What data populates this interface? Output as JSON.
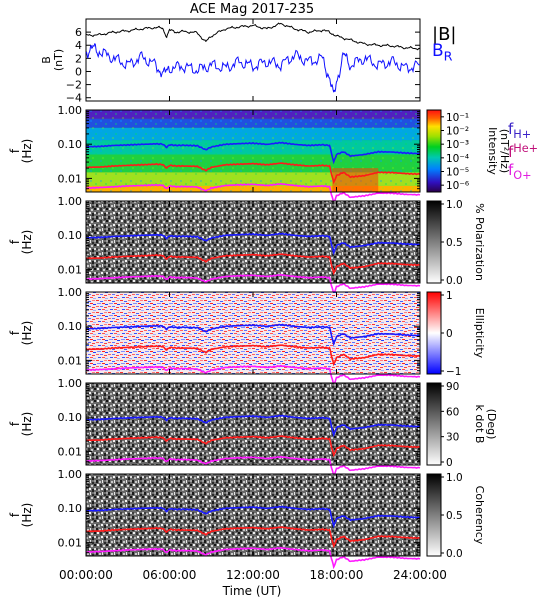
{
  "chart_data": {
    "type": "multi-panel spectrogram",
    "title": "ACE Mag 2017-235",
    "xlabel": "Time (UT)",
    "x_ticks": [
      "00:00:00",
      "06:00:00",
      "12:00:00",
      "18:00:00",
      "24:00:00"
    ],
    "xlim_hours": [
      0,
      24
    ],
    "legend_top": [
      "|B|",
      "B_R"
    ],
    "legend_freq": [
      "f_H+",
      "f_He+",
      "f_O+"
    ],
    "colors": {
      "B_total": "#000000",
      "B_R": "#1010ff",
      "f_H": "#1a1aff",
      "f_He": "#ff1a1a",
      "f_O": "#ff1aff",
      "legend_H": "#3b24c8",
      "legend_He": "#c0107a",
      "legend_O": "#e020e0"
    },
    "panels": [
      {
        "type": "line",
        "ylabel": "B (nT)",
        "yticks": [
          "−4",
          "−2",
          "0",
          "2",
          "4",
          "6"
        ],
        "ylim": [
          -4.5,
          8
        ],
        "series": [
          {
            "name": "|B|",
            "x": [
              0,
              1,
              2,
              3,
              4,
              5,
              5.5,
              5.8,
              6,
              6.5,
              7,
              8,
              8.6,
              9,
              10,
              11,
              12,
              13,
              14,
              15,
              16,
              17,
              17.5,
              18,
              19,
              20,
              21,
              22,
              23,
              24
            ],
            "values": [
              5.5,
              5.6,
              6.0,
              6.2,
              6.5,
              6.7,
              6.6,
              5.3,
              6.3,
              6.0,
              6.1,
              5.9,
              4.5,
              5.4,
              6.5,
              6.8,
              7.0,
              6.5,
              7.3,
              6.5,
              6.0,
              6.3,
              6.0,
              5.4,
              4.8,
              4.2,
              4.0,
              3.9,
              3.6,
              3.5
            ]
          },
          {
            "name": "B_R",
            "x": [
              0,
              0.5,
              1,
              2,
              3,
              4,
              5,
              5.6,
              6,
              7,
              8,
              9,
              10,
              11,
              12,
              13,
              14,
              15,
              16,
              17,
              17.5,
              17.8,
              18,
              18.5,
              19,
              20,
              21,
              22,
              23,
              24
            ],
            "values": [
              3.0,
              3.5,
              3.0,
              2.0,
              1.0,
              2.2,
              1.0,
              -0.5,
              0.5,
              0.8,
              0.2,
              1.0,
              0.5,
              1.5,
              0.8,
              1.5,
              1.0,
              2.5,
              1.5,
              2.0,
              -1.0,
              -4.0,
              -1.5,
              2.5,
              1.0,
              2.0,
              1.0,
              1.5,
              0.5,
              1.0
            ]
          }
        ]
      },
      {
        "type": "heatmap",
        "ylabel": "f (Hz)",
        "colorbar_label": "Intensity (nT²/Hz)",
        "colorbar_ticks": [
          "10⁻¹",
          "10⁻²",
          "10⁻³",
          "10⁻⁴",
          "10⁻⁵",
          "10⁻⁶"
        ],
        "colorbar_log_range": [
          -6.5,
          -0.5
        ]
      },
      {
        "type": "heatmap",
        "ylabel": "f (Hz)",
        "colorbar_label": "% Polarization",
        "colorbar_ticks": [
          "1.0",
          "0.5",
          "0.0"
        ],
        "colorbar_range": [
          0,
          1
        ]
      },
      {
        "type": "heatmap",
        "ylabel": "f (Hz)",
        "colorbar_label": "Ellipticity",
        "colorbar_ticks": [
          "1",
          "0",
          "−1"
        ],
        "colorbar_range": [
          -1,
          1
        ]
      },
      {
        "type": "heatmap",
        "ylabel": "f (Hz)",
        "colorbar_label": "k dot B (Deg)",
        "colorbar_ticks": [
          "90",
          "60",
          "30",
          "0"
        ],
        "colorbar_range": [
          0,
          90
        ]
      },
      {
        "type": "heatmap",
        "ylabel": "f (Hz)",
        "colorbar_label": "Coherency",
        "colorbar_ticks": [
          "1.0",
          "0.5",
          "0.0"
        ],
        "colorbar_range": [
          0,
          1
        ]
      }
    ],
    "freq_axis": {
      "scale": "log",
      "ylim": [
        0.004,
        1.0
      ],
      "ticks": [
        "1.00",
        "0.10",
        "0.01"
      ],
      "tick_values": [
        1.0,
        0.1,
        0.01
      ]
    },
    "gyrofrequency_lines": {
      "x_hours": [
        0,
        1,
        2,
        3,
        4,
        5,
        5.5,
        5.8,
        6,
        6.5,
        7,
        8,
        8.6,
        9,
        10,
        11,
        12,
        13,
        14,
        15,
        16,
        17,
        17.5,
        17.8,
        18,
        18.5,
        19,
        20,
        21,
        22,
        23,
        24
      ],
      "f_H+": [
        0.084,
        0.086,
        0.092,
        0.095,
        0.099,
        0.102,
        0.101,
        0.081,
        0.096,
        0.092,
        0.093,
        0.09,
        0.069,
        0.083,
        0.099,
        0.104,
        0.107,
        0.099,
        0.111,
        0.099,
        0.092,
        0.096,
        0.092,
        0.03,
        0.05,
        0.06,
        0.045,
        0.05,
        0.06,
        0.059,
        0.055,
        0.053
      ],
      "f_He+": [
        0.021,
        0.0215,
        0.023,
        0.024,
        0.025,
        0.026,
        0.0255,
        0.02,
        0.024,
        0.023,
        0.023,
        0.0225,
        0.017,
        0.021,
        0.025,
        0.026,
        0.027,
        0.025,
        0.028,
        0.025,
        0.023,
        0.024,
        0.023,
        0.0076,
        0.012,
        0.015,
        0.011,
        0.012,
        0.015,
        0.0148,
        0.0138,
        0.0133
      ],
      "f_O+": [
        0.0052,
        0.0054,
        0.0057,
        0.006,
        0.0062,
        0.0064,
        0.0063,
        0.005,
        0.006,
        0.0057,
        0.0058,
        0.0056,
        0.0043,
        0.0052,
        0.0062,
        0.0065,
        0.0067,
        0.0062,
        0.0069,
        0.0062,
        0.0057,
        0.006,
        0.0057,
        0.0019,
        0.0031,
        0.0038,
        0.0028,
        0.0031,
        0.0037,
        0.0037,
        0.0034,
        0.0033
      ]
    }
  }
}
